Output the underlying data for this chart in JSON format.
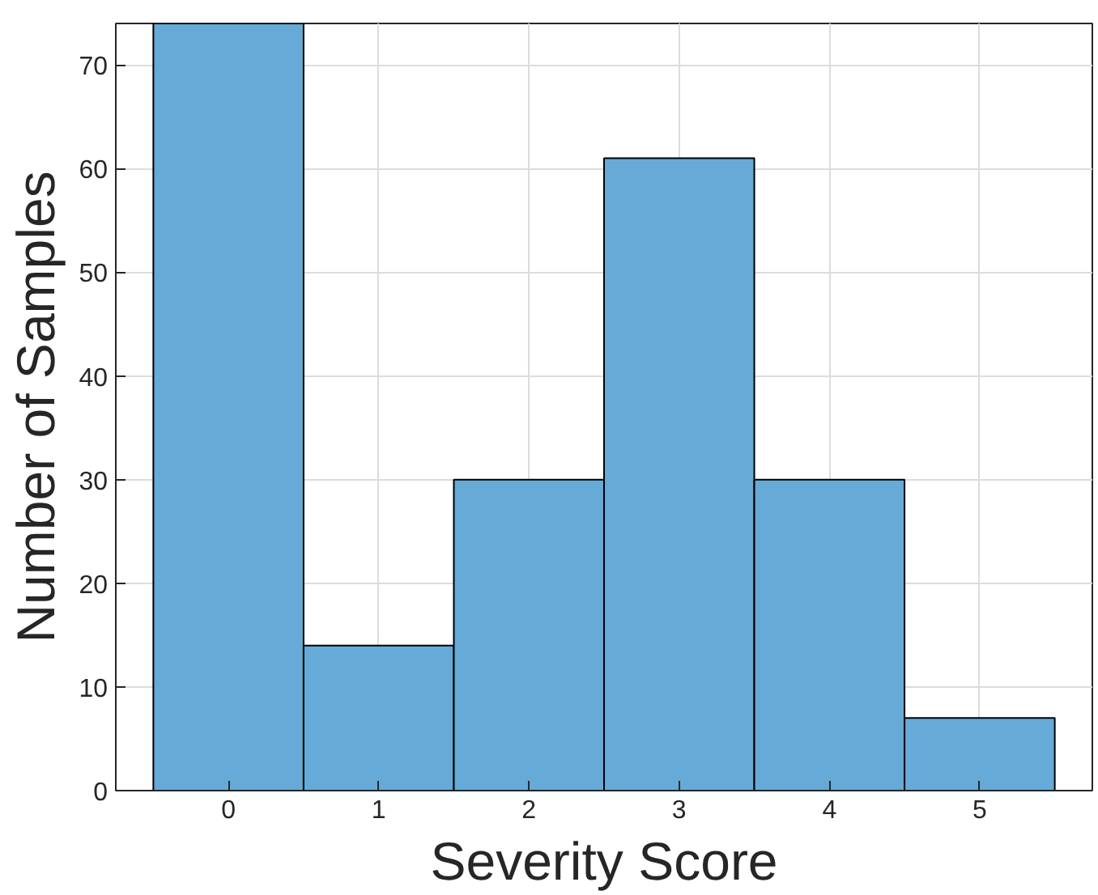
{
  "chart_data": {
    "type": "histogram",
    "xlabel": "Severity Score",
    "ylabel": "Number of Samples",
    "bins": [
      -0.5,
      0.5,
      1.5,
      2.5,
      3.5,
      4.5,
      5.5
    ],
    "values": [
      74,
      14,
      30,
      61,
      30,
      7
    ],
    "color": "#66aad7",
    "xlim": [
      -0.75,
      5.75
    ],
    "xticks": [
      0,
      1,
      2,
      3,
      4,
      5
    ],
    "ylim": [
      0,
      74
    ],
    "yticks": [
      0,
      10,
      20,
      30,
      40,
      50,
      60,
      70
    ],
    "grid": true
  }
}
